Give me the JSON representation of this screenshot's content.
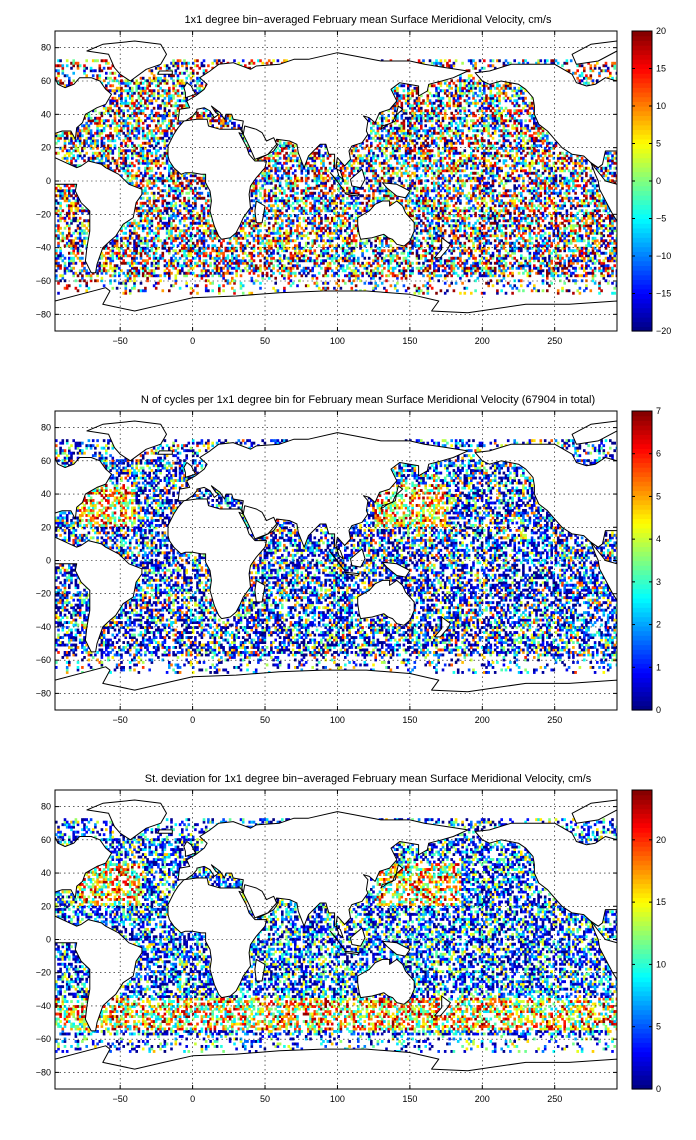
{
  "chart_data": [
    {
      "type": "heatmap",
      "title": "1x1 degree bin−averaged February mean Surface Meridional Velocity, cm/s",
      "xlim": [
        -95,
        293
      ],
      "ylim": [
        -90,
        90
      ],
      "xticks": [
        -50,
        0,
        50,
        100,
        150,
        200,
        250
      ],
      "yticks": [
        -80,
        -60,
        -40,
        -20,
        0,
        20,
        40,
        60,
        80
      ],
      "grid": true,
      "colorbar": {
        "min": -20,
        "max": 20,
        "ticks": [
          -20,
          -15,
          -10,
          -5,
          0,
          5,
          10,
          15,
          20
        ],
        "colormap": "jet"
      },
      "field": "signed"
    },
    {
      "type": "heatmap",
      "title": "N of cycles per 1x1 degree bin for February mean Surface Meridional Velocity (67904 in total)",
      "xlim": [
        -95,
        293
      ],
      "ylim": [
        -90,
        90
      ],
      "xticks": [
        -50,
        0,
        50,
        100,
        150,
        200,
        250
      ],
      "yticks": [
        -80,
        -60,
        -40,
        -20,
        0,
        20,
        40,
        60,
        80
      ],
      "grid": true,
      "colorbar": {
        "min": 0,
        "max": 7,
        "ticks": [
          0,
          1,
          2,
          3,
          4,
          5,
          6,
          7
        ],
        "colormap": "jet"
      },
      "field": "count"
    },
    {
      "type": "heatmap",
      "title": "St. deviation for 1x1 degree bin−averaged February mean Surface Meridional Velocity, cm/s",
      "xlim": [
        -95,
        293
      ],
      "ylim": [
        -90,
        90
      ],
      "xticks": [
        -50,
        0,
        50,
        100,
        150,
        200,
        250
      ],
      "yticks": [
        -80,
        -60,
        -40,
        -20,
        0,
        20,
        40,
        60,
        80
      ],
      "grid": true,
      "colorbar": {
        "min": 0,
        "max": 24,
        "ticks": [
          0,
          5,
          10,
          15,
          20
        ],
        "colormap": "jet"
      },
      "field": "std"
    }
  ],
  "colors": {
    "land": "#ffffff",
    "coast": "#000000",
    "colormap": "jet"
  }
}
